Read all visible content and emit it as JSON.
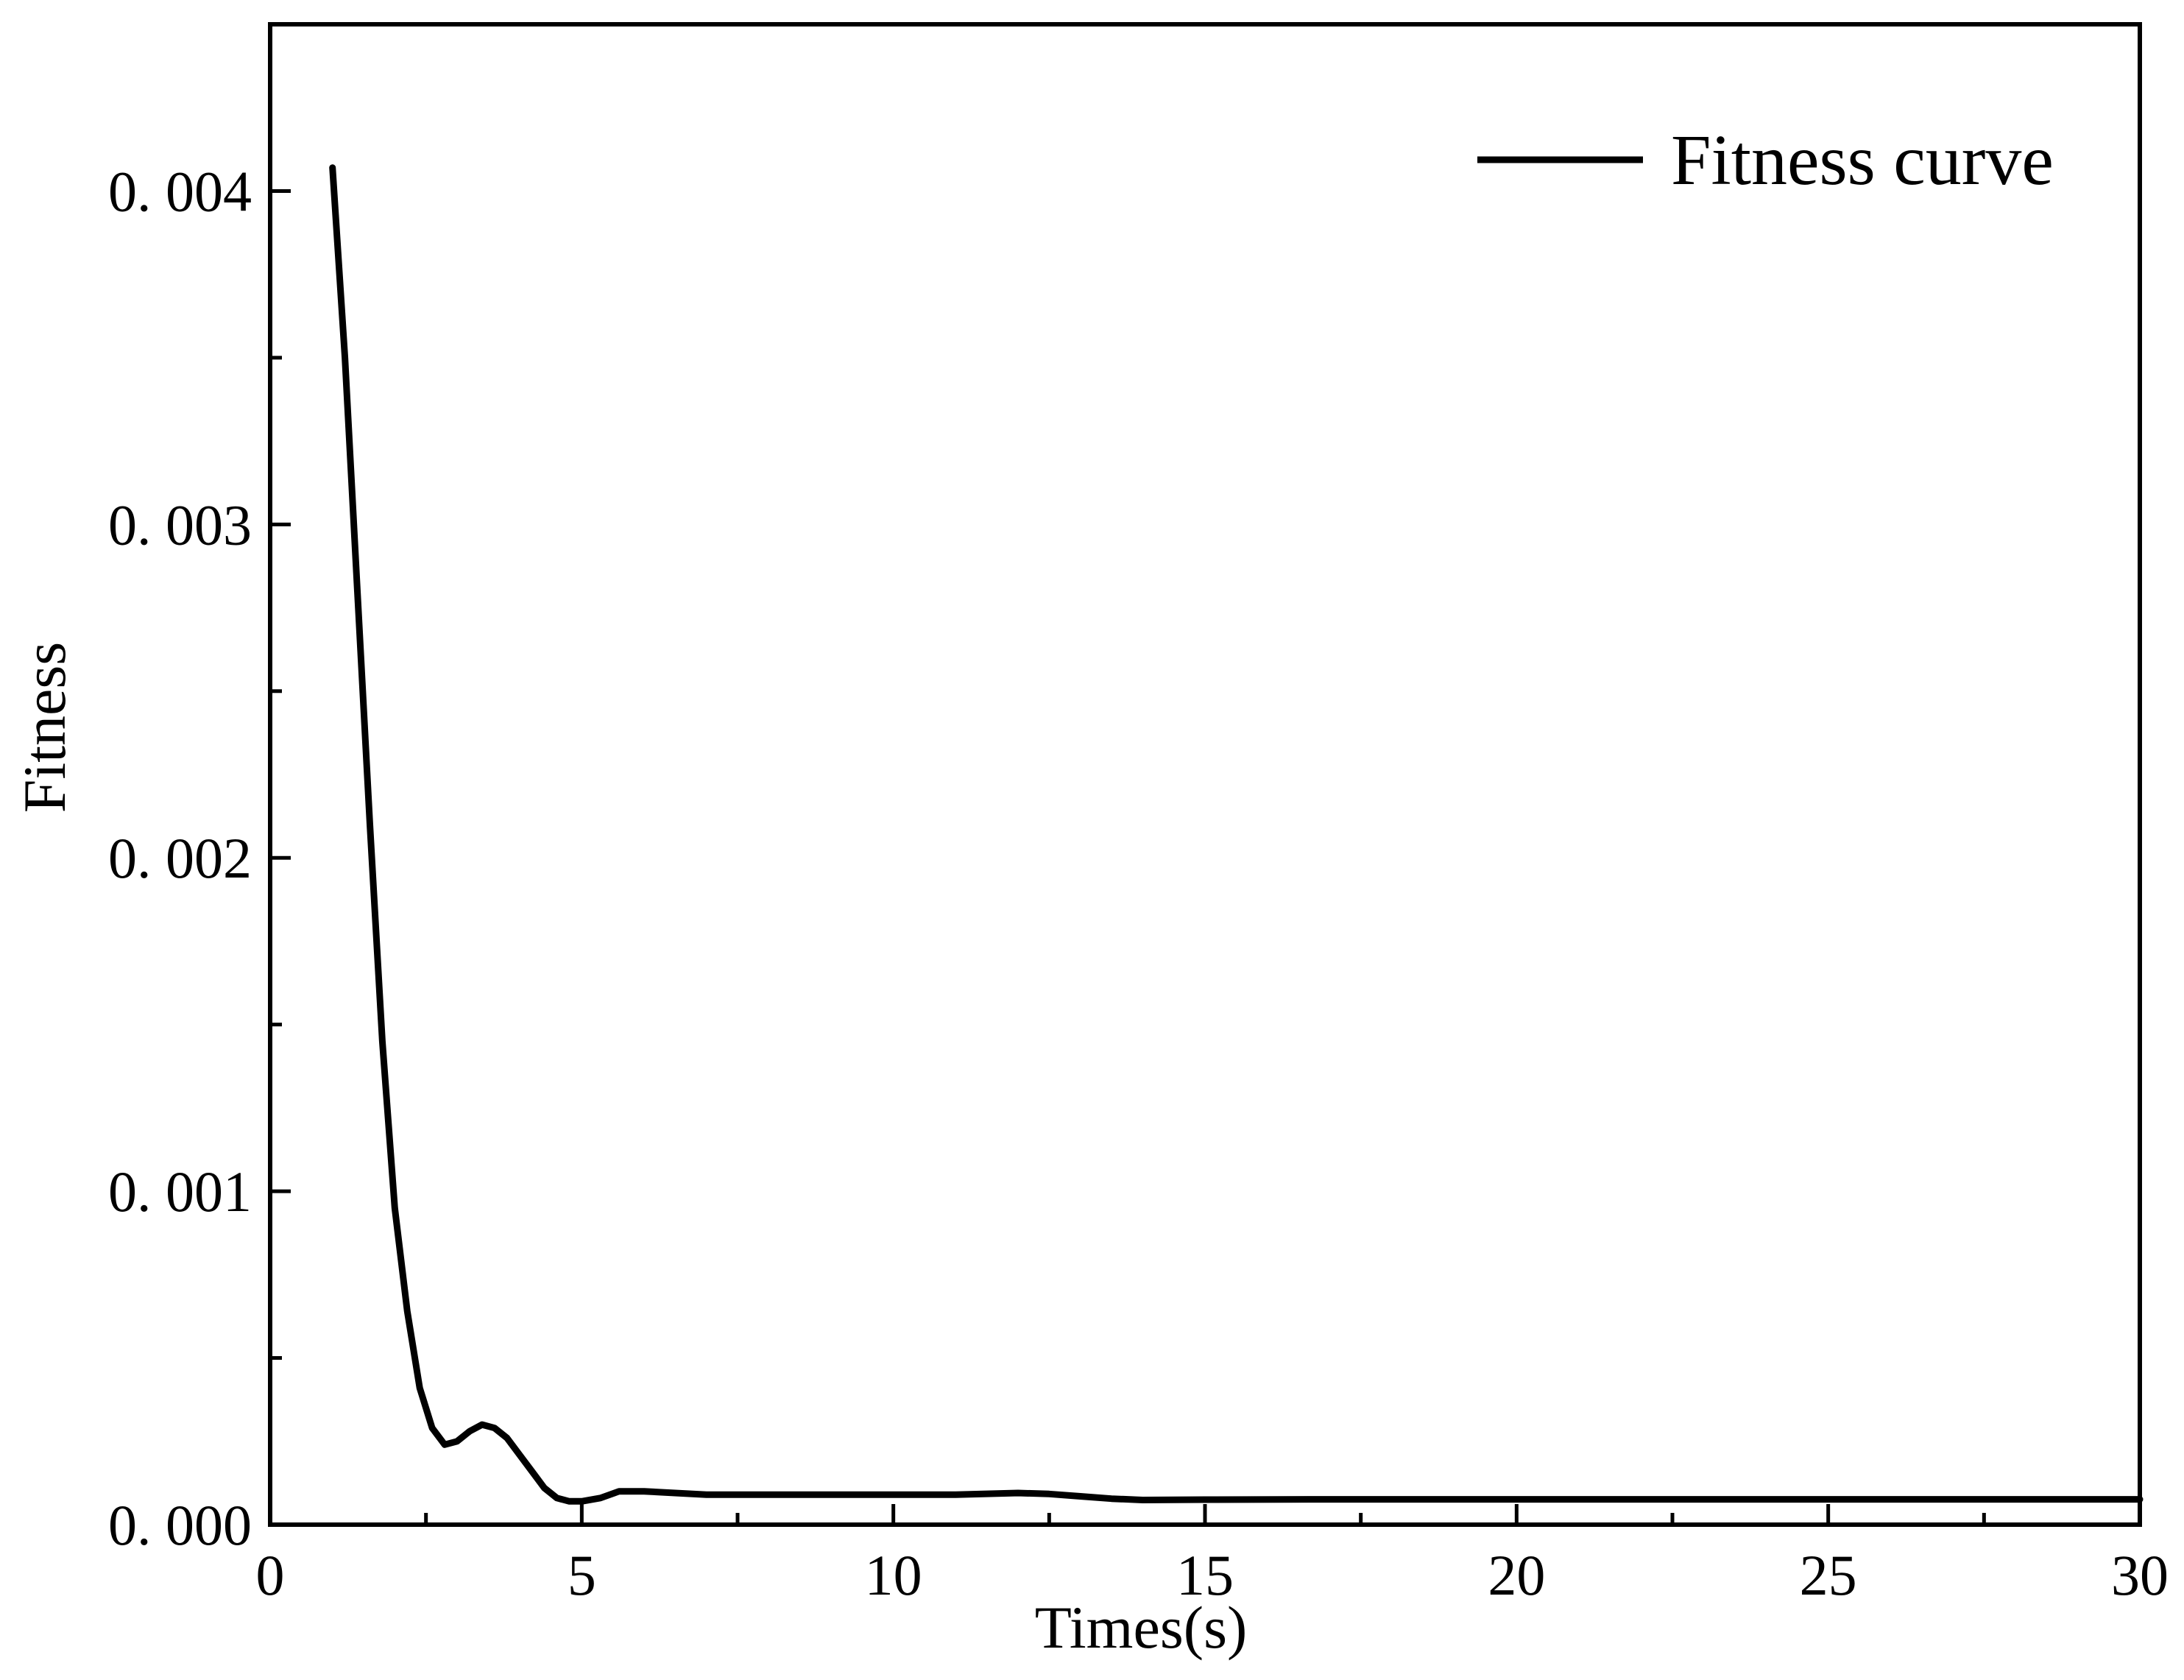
{
  "chart_data": {
    "type": "line",
    "title": "",
    "xlabel": "Times(s)",
    "ylabel": "Fitness",
    "xlim": [
      0,
      30
    ],
    "ylim": [
      0,
      0.0045
    ],
    "x_ticks": [
      0,
      5,
      10,
      15,
      20,
      25,
      30
    ],
    "x_tick_labels": [
      "0",
      "5",
      "10",
      "15",
      "20",
      "25",
      "30"
    ],
    "y_ticks": [
      0,
      0.001,
      0.002,
      0.003,
      0.004
    ],
    "y_tick_labels": [
      "0. 000",
      "0. 001",
      "0. 002",
      "0. 003",
      "0. 004"
    ],
    "grid": false,
    "legend_position": "top-right",
    "series": [
      {
        "name": "Fitness curve",
        "color": "#000000",
        "points": [
          [
            1.0,
            0.00407
          ],
          [
            1.2,
            0.0035
          ],
          [
            1.4,
            0.0028
          ],
          [
            1.6,
            0.0021
          ],
          [
            1.8,
            0.00145
          ],
          [
            2.0,
            0.00095
          ],
          [
            2.2,
            0.00064
          ],
          [
            2.4,
            0.00041
          ],
          [
            2.6,
            0.00029
          ],
          [
            2.8,
            0.00024
          ],
          [
            3.0,
            0.00025
          ],
          [
            3.2,
            0.00028
          ],
          [
            3.4,
            0.0003
          ],
          [
            3.6,
            0.00029
          ],
          [
            3.8,
            0.00026
          ],
          [
            4.0,
            0.00021
          ],
          [
            4.2,
            0.00016
          ],
          [
            4.4,
            0.00011
          ],
          [
            4.6,
            8e-05
          ],
          [
            4.8,
            7e-05
          ],
          [
            5.0,
            7e-05
          ],
          [
            5.3,
            8e-05
          ],
          [
            5.6,
            0.0001
          ],
          [
            6.0,
            0.0001
          ],
          [
            6.5,
            9.5e-05
          ],
          [
            7.0,
            9e-05
          ],
          [
            8.0,
            9e-05
          ],
          [
            9.0,
            9e-05
          ],
          [
            10.0,
            9e-05
          ],
          [
            11.0,
            9e-05
          ],
          [
            12.0,
            9.5e-05
          ],
          [
            12.5,
            9.2e-05
          ],
          [
            13.0,
            8.5e-05
          ],
          [
            13.5,
            7.8e-05
          ],
          [
            14.0,
            7.4e-05
          ],
          [
            15.0,
            7.5e-05
          ],
          [
            17.0,
            7.6e-05
          ],
          [
            20.0,
            7.6e-05
          ],
          [
            25.0,
            7.6e-05
          ],
          [
            30.0,
            7.6e-05
          ]
        ]
      }
    ]
  }
}
